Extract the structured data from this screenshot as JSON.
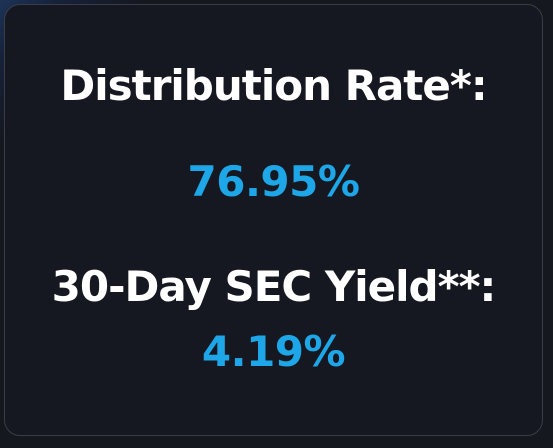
{
  "card": {
    "distribution_label": "Distribution Rate*:",
    "distribution_value": "76.95%",
    "sec_yield_label": "30-Day SEC Yield**:",
    "sec_yield_value": "4.19%"
  },
  "colors": {
    "label": "#ffffff",
    "value": "#1ea7e8",
    "card_background": "#161821",
    "card_border": "#3a3d47"
  }
}
